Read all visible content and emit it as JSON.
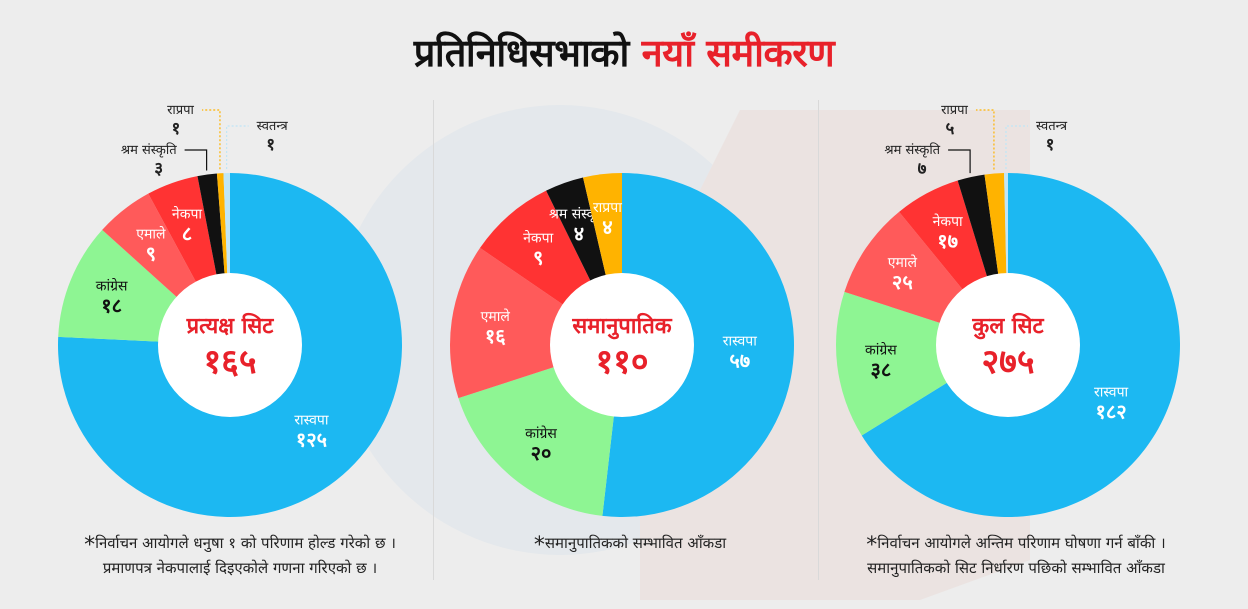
{
  "title": {
    "part1": "प्रतिनिधिसभाको",
    "part2": "नयाँ समीकरण"
  },
  "colors": {
    "rsp": "#1cb8f2",
    "congress": "#8ef593",
    "uml": "#ff5a5a",
    "ncp": "#ff3333",
    "shram": "#111111",
    "rpp": "#ffb300",
    "independent": "#bfe6f7",
    "center_text": "#e8212a",
    "title_accent": "#e8212a"
  },
  "charts": [
    {
      "center_label": "प्रत्यक्ष सिट",
      "center_value": "१६५",
      "footnote": [
        "निर्वाचन आयोगले धनुषा १ को परिणाम होल्ड गरेको छ ।",
        "प्रमाणपत्र नेकपालाई दिइएकोले गणना गरिएको छ ।"
      ]
    },
    {
      "center_label": "समानुपातिक",
      "center_value": "११०",
      "footnote": [
        "समानुपातिकको सम्भावित आँकडा"
      ]
    },
    {
      "center_label": "कुल सिट",
      "center_value": "२७५",
      "footnote": [
        "निर्वाचन आयोगले अन्तिम परिणाम घोषणा गर्न बाँकी ।",
        "समानुपातिकको सिट निर्धारण पछिको सम्भावित आँकडा"
      ]
    }
  ],
  "chart_data": [
    {
      "type": "pie",
      "title": "प्रत्यक्ष सिट",
      "total": 165,
      "slices": [
        {
          "label": "रास्वपा",
          "value": 125,
          "value_text": "१२५",
          "color": "#1cb8f2"
        },
        {
          "label": "कांग्रेस",
          "value": 18,
          "value_text": "१८",
          "color": "#8ef593"
        },
        {
          "label": "एमाले",
          "value": 9,
          "value_text": "९",
          "color": "#ff5a5a"
        },
        {
          "label": "नेकपा",
          "value": 8,
          "value_text": "८",
          "color": "#ff3333"
        },
        {
          "label": "श्रम संस्कृति",
          "value": 3,
          "value_text": "३",
          "color": "#111111"
        },
        {
          "label": "राप्रपा",
          "value": 1,
          "value_text": "१",
          "color": "#ffb300"
        },
        {
          "label": "स्वतन्त्र",
          "value": 1,
          "value_text": "१",
          "color": "#bfe6f7"
        }
      ]
    },
    {
      "type": "pie",
      "title": "समानुपातिक",
      "total": 110,
      "slices": [
        {
          "label": "रास्वपा",
          "value": 57,
          "value_text": "५७",
          "color": "#1cb8f2"
        },
        {
          "label": "कांग्रेस",
          "value": 20,
          "value_text": "२०",
          "color": "#8ef593"
        },
        {
          "label": "एमाले",
          "value": 16,
          "value_text": "१६",
          "color": "#ff5a5a"
        },
        {
          "label": "नेकपा",
          "value": 9,
          "value_text": "९",
          "color": "#ff3333"
        },
        {
          "label": "श्रम संस्कृति",
          "value": 4,
          "value_text": "४",
          "color": "#111111"
        },
        {
          "label": "राप्रपा",
          "value": 4,
          "value_text": "४",
          "color": "#ffb300"
        }
      ]
    },
    {
      "type": "pie",
      "title": "कुल सिट",
      "total": 275,
      "slices": [
        {
          "label": "रास्वपा",
          "value": 182,
          "value_text": "१८२",
          "color": "#1cb8f2"
        },
        {
          "label": "कांग्रेस",
          "value": 38,
          "value_text": "३८",
          "color": "#8ef593"
        },
        {
          "label": "एमाले",
          "value": 25,
          "value_text": "२५",
          "color": "#ff5a5a"
        },
        {
          "label": "नेकपा",
          "value": 17,
          "value_text": "१७",
          "color": "#ff3333"
        },
        {
          "label": "श्रम संस्कृति",
          "value": 7,
          "value_text": "७",
          "color": "#111111"
        },
        {
          "label": "राप्रपा",
          "value": 5,
          "value_text": "५",
          "color": "#ffb300"
        },
        {
          "label": "स्वतन्त्र",
          "value": 1,
          "value_text": "१",
          "color": "#bfe6f7"
        }
      ]
    }
  ]
}
